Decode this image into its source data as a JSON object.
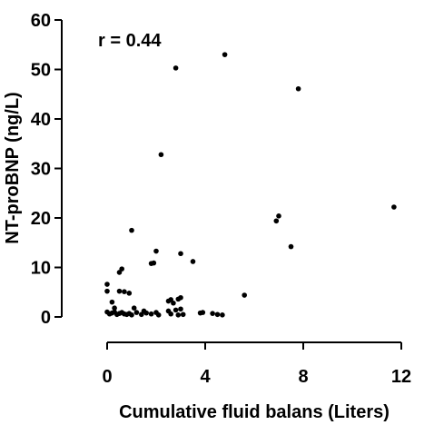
{
  "chart_data": {
    "type": "scatter",
    "title": "",
    "xlabel": "Cumulative fluid balans  (Liters)",
    "ylabel": "NT-proBNP (ng/L)",
    "annotation": "r = 0.44",
    "xlim": [
      0,
      12
    ],
    "ylim": [
      0,
      60
    ],
    "x_ticks": [
      0,
      4,
      8,
      12
    ],
    "y_ticks": [
      0,
      10,
      20,
      30,
      40,
      50,
      60
    ],
    "grid": false,
    "marker_color": "#000000",
    "points": [
      {
        "x": 0.0,
        "y": 6.6
      },
      {
        "x": 0.0,
        "y": 5.2
      },
      {
        "x": 0.0,
        "y": 1.0
      },
      {
        "x": 0.1,
        "y": 0.6
      },
      {
        "x": 0.2,
        "y": 0.8
      },
      {
        "x": 0.3,
        "y": 1.0
      },
      {
        "x": 0.4,
        "y": 0.5
      },
      {
        "x": 0.5,
        "y": 0.7
      },
      {
        "x": 0.6,
        "y": 0.9
      },
      {
        "x": 0.7,
        "y": 0.6
      },
      {
        "x": 0.8,
        "y": 0.5
      },
      {
        "x": 0.9,
        "y": 0.7
      },
      {
        "x": 1.0,
        "y": 0.4
      },
      {
        "x": 1.2,
        "y": 0.9
      },
      {
        "x": 1.4,
        "y": 0.5
      },
      {
        "x": 1.5,
        "y": 1.2
      },
      {
        "x": 1.6,
        "y": 0.8
      },
      {
        "x": 1.8,
        "y": 0.6
      },
      {
        "x": 2.0,
        "y": 0.9
      },
      {
        "x": 2.1,
        "y": 0.4
      },
      {
        "x": 0.2,
        "y": 3.0
      },
      {
        "x": 0.3,
        "y": 1.8
      },
      {
        "x": 0.5,
        "y": 9.0
      },
      {
        "x": 0.6,
        "y": 9.7
      },
      {
        "x": 0.5,
        "y": 5.2
      },
      {
        "x": 0.7,
        "y": 5.1
      },
      {
        "x": 0.9,
        "y": 4.8
      },
      {
        "x": 1.0,
        "y": 17.5
      },
      {
        "x": 1.1,
        "y": 1.8
      },
      {
        "x": 1.8,
        "y": 10.8
      },
      {
        "x": 1.9,
        "y": 10.9
      },
      {
        "x": 2.0,
        "y": 13.3
      },
      {
        "x": 2.2,
        "y": 32.8
      },
      {
        "x": 2.5,
        "y": 3.2
      },
      {
        "x": 2.6,
        "y": 3.5
      },
      {
        "x": 2.7,
        "y": 2.8
      },
      {
        "x": 2.5,
        "y": 1.2
      },
      {
        "x": 2.6,
        "y": 0.6
      },
      {
        "x": 2.8,
        "y": 1.4
      },
      {
        "x": 2.9,
        "y": 0.4
      },
      {
        "x": 3.0,
        "y": 1.6
      },
      {
        "x": 3.1,
        "y": 0.5
      },
      {
        "x": 2.8,
        "y": 50.3
      },
      {
        "x": 2.9,
        "y": 3.6
      },
      {
        "x": 3.0,
        "y": 3.9
      },
      {
        "x": 3.0,
        "y": 12.8
      },
      {
        "x": 3.5,
        "y": 11.2
      },
      {
        "x": 3.8,
        "y": 0.8
      },
      {
        "x": 3.9,
        "y": 0.9
      },
      {
        "x": 4.3,
        "y": 0.7
      },
      {
        "x": 4.5,
        "y": 0.5
      },
      {
        "x": 4.7,
        "y": 0.4
      },
      {
        "x": 4.8,
        "y": 53.0
      },
      {
        "x": 5.6,
        "y": 4.4
      },
      {
        "x": 6.9,
        "y": 19.4
      },
      {
        "x": 7.0,
        "y": 20.4
      },
      {
        "x": 7.5,
        "y": 14.2
      },
      {
        "x": 7.8,
        "y": 46.1
      },
      {
        "x": 11.7,
        "y": 22.2
      }
    ]
  }
}
